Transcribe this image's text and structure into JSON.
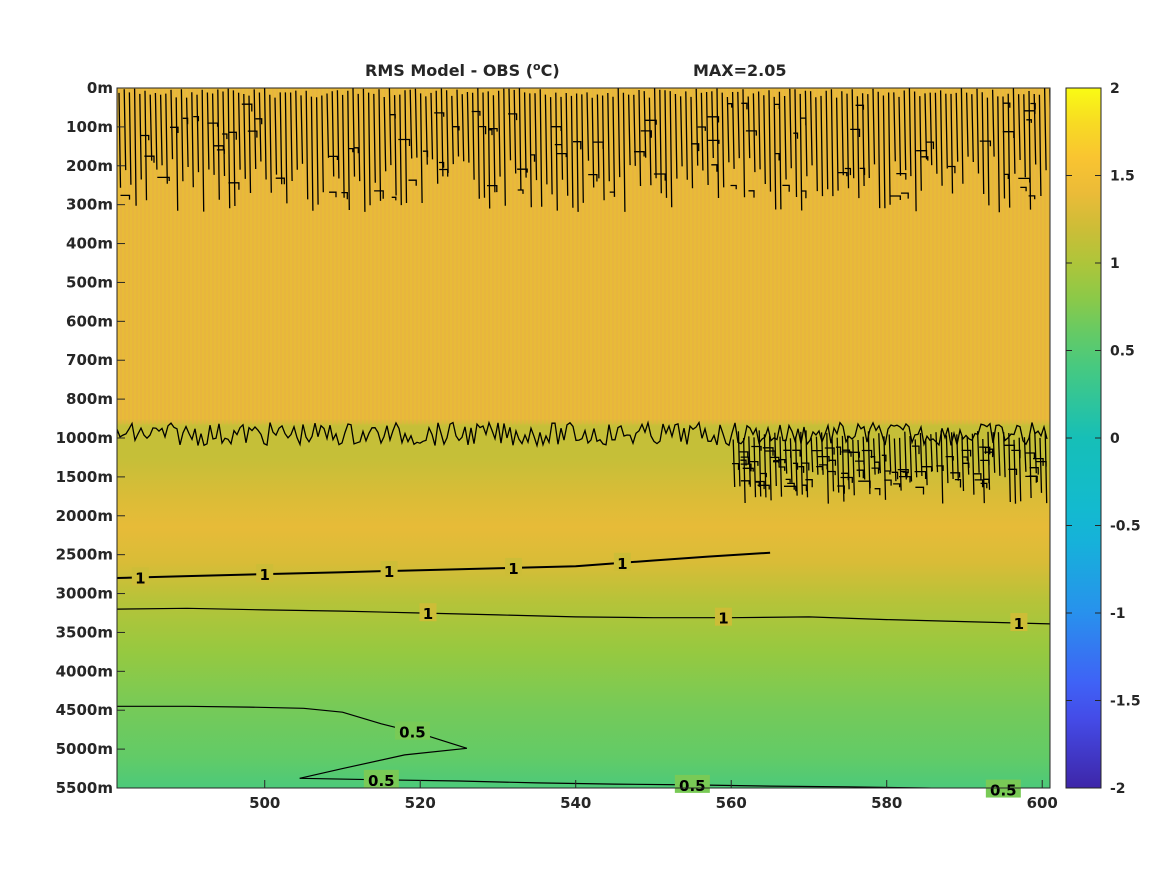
{
  "chart_data": {
    "type": "heatmap",
    "title": "RMS Model - OBS (°C)",
    "title_parts": {
      "prefix": "RMS Model - OBS (",
      "superscript": "o",
      "suffix": "C)"
    },
    "max_label": "MAX=2.05",
    "xlim": [
      481,
      601
    ],
    "x_ticks": [
      500,
      520,
      540,
      560,
      580,
      600
    ],
    "x_tick_labels": [
      "500",
      "520",
      "540",
      "560",
      "580",
      "600"
    ],
    "y_tick_labels": [
      "0m",
      "100m",
      "200m",
      "300m",
      "400m",
      "500m",
      "600m",
      "700m",
      "800m",
      "1000m",
      "1500m",
      "2000m",
      "2500m",
      "3000m",
      "3500m",
      "4000m",
      "4500m",
      "5000m",
      "5500m"
    ],
    "colorbar": {
      "range": [
        -2,
        2
      ],
      "ticks": [
        2,
        1.5,
        1,
        0.5,
        0,
        -0.5,
        -1,
        -1.5,
        -2
      ],
      "tick_labels": [
        "2",
        "1.5",
        "1",
        "0.5",
        "0",
        "-0.5",
        "-1",
        "-1.5",
        "-2"
      ],
      "colormap": "parula"
    },
    "field_profile": [
      {
        "depth_index": 0,
        "value": 1.38
      },
      {
        "depth_index": 8.5,
        "value": 1.38
      },
      {
        "depth_index": 8.7,
        "value": 1.15
      },
      {
        "depth_index": 9.5,
        "value": 1.15
      },
      {
        "depth_index": 10.6,
        "value": 1.3
      },
      {
        "depth_index": 11.3,
        "value": 1.37
      },
      {
        "depth_index": 12.2,
        "value": 1.28
      },
      {
        "depth_index": 13.2,
        "value": 1.05
      },
      {
        "depth_index": 14.5,
        "value": 0.85
      },
      {
        "depth_index": 16,
        "value": 0.68
      },
      {
        "depth_index": 17.2,
        "value": 0.58
      },
      {
        "depth_index": 18,
        "value": 0.45
      }
    ],
    "contours": [
      {
        "level": 1,
        "label": "1",
        "points": [
          [
            481,
            12.6
          ],
          [
            490,
            12.55
          ],
          [
            500,
            12.5
          ],
          [
            510,
            12.45
          ],
          [
            520,
            12.4
          ],
          [
            530,
            12.35
          ],
          [
            540,
            12.3
          ],
          [
            550,
            12.15
          ],
          [
            557,
            12.05
          ],
          [
            565,
            11.95
          ]
        ],
        "label_x": [
          484,
          500,
          516,
          532,
          546
        ]
      },
      {
        "level": 1,
        "label": "1",
        "points": [
          [
            481,
            13.4
          ],
          [
            490,
            13.38
          ],
          [
            500,
            13.42
          ],
          [
            510,
            13.45
          ],
          [
            520,
            13.5
          ],
          [
            530,
            13.55
          ],
          [
            540,
            13.6
          ],
          [
            550,
            13.62
          ],
          [
            560,
            13.62
          ],
          [
            570,
            13.6
          ],
          [
            580,
            13.67
          ],
          [
            590,
            13.72
          ],
          [
            601,
            13.78
          ]
        ],
        "label_x": [
          521,
          559,
          597
        ]
      },
      {
        "level": 0.5,
        "label": "0.5",
        "points": [
          [
            481,
            15.9
          ],
          [
            490,
            15.9
          ],
          [
            498,
            15.92
          ],
          [
            505,
            15.95
          ],
          [
            510,
            16.05
          ],
          [
            515,
            16.35
          ],
          [
            520,
            16.6
          ],
          [
            526,
            16.98
          ],
          [
            518,
            17.15
          ],
          [
            510,
            17.5
          ],
          [
            504.5,
            17.75
          ]
        ],
        "label_x": [
          519
        ]
      },
      {
        "level": 0.5,
        "label": "0.5",
        "points": [
          [
            504.5,
            17.75
          ],
          [
            515,
            17.79
          ],
          [
            525,
            17.82
          ],
          [
            535,
            17.87
          ],
          [
            545,
            17.9
          ],
          [
            555,
            17.92
          ],
          [
            565,
            17.95
          ],
          [
            575,
            17.97
          ],
          [
            585,
            18.0
          ],
          [
            595,
            18.04
          ],
          [
            601,
            18.05
          ]
        ],
        "label_x": [
          515,
          555,
          595
        ]
      }
    ],
    "noisy_bands": [
      {
        "x_range": [
          481,
          601
        ],
        "depth_index_range": [
          0,
          3.2
        ],
        "description": "dense wiggly contours near surface"
      },
      {
        "x_range": [
          481,
          601
        ],
        "depth_index_range": [
          8.6,
          9.2
        ],
        "description": "contour along upper boundary"
      },
      {
        "x_range": [
          560,
          601
        ],
        "depth_index_range": [
          8.8,
          10.7
        ],
        "description": "dense contours"
      }
    ]
  }
}
